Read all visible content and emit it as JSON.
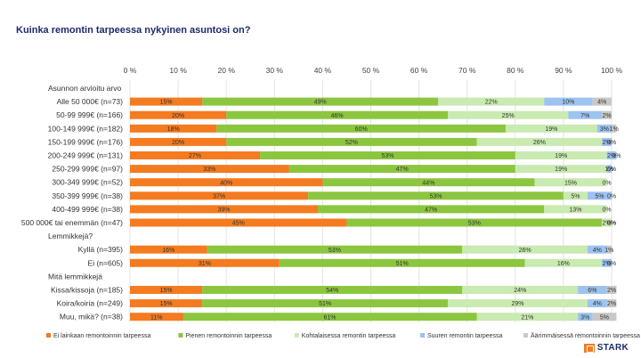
{
  "title": "Kuinka remontin tarpeessa nykyinen asuntosi on?",
  "brand": {
    "name": "STARK"
  },
  "chart_data": {
    "type": "bar",
    "orientation": "horizontal",
    "stacked": true,
    "xlim": [
      0,
      100
    ],
    "xticks": [
      "0 %",
      "10 %",
      "20 %",
      "30 %",
      "40 %",
      "50 %",
      "60 %",
      "70 %",
      "80 %",
      "90 %",
      "100 %"
    ],
    "legend_position": "bottom",
    "colors": [
      "#f47b20",
      "#8cc63f",
      "#c9eab0",
      "#9dc3f0",
      "#c8c8c8"
    ],
    "series_names": [
      "Ei lainkaan remontoinnin tarpeessa",
      "Pienen remontoinnin tarpeessa",
      "Kohtalaisessa remontin tarpeessa",
      "Suuren remontin tarpeessa",
      "Äärimmäisessä remontoinnin tarpeessa"
    ],
    "rows": [
      {
        "kind": "header",
        "label": "Asunnon arvioitu arvo"
      },
      {
        "kind": "bar",
        "label": "Alle 50 000€ (n=73)",
        "values": [
          15,
          49,
          22,
          10,
          4
        ],
        "value_labels": [
          "15%",
          "49%",
          "22%",
          "10%",
          "4%"
        ]
      },
      {
        "kind": "bar",
        "label": "50-99 999€ (n=166)",
        "values": [
          20,
          46,
          25,
          7,
          2
        ],
        "value_labels": [
          "20%",
          "46%",
          "25%",
          "7%",
          "2%"
        ]
      },
      {
        "kind": "bar",
        "label": "100-149 999€ (n=182)",
        "values": [
          18,
          60,
          19,
          3,
          1
        ],
        "value_labels": [
          "18%",
          "60%",
          "19%",
          "3%",
          "1%"
        ]
      },
      {
        "kind": "bar",
        "label": "150-199 999€ (n=176)",
        "values": [
          20,
          52,
          26,
          2,
          0
        ],
        "value_labels": [
          "20%",
          "52%",
          "26%",
          "2%",
          "0%"
        ]
      },
      {
        "kind": "bar",
        "label": "200-249 999€ (n=131)",
        "values": [
          27,
          53,
          19,
          2,
          0
        ],
        "value_labels": [
          "27%",
          "53%",
          "19%",
          "2%",
          "0%"
        ]
      },
      {
        "kind": "bar",
        "label": "250-299 999€ (n=97)",
        "values": [
          33,
          47,
          19,
          1,
          0
        ],
        "value_labels": [
          "33%",
          "47%",
          "19%",
          "1%",
          "0%"
        ]
      },
      {
        "kind": "bar",
        "label": "300-349 999€ (n=52)",
        "values": [
          40,
          44,
          15,
          0,
          0
        ],
        "value_labels": [
          "40%",
          "44%",
          "15%",
          "",
          "0%"
        ]
      },
      {
        "kind": "bar",
        "label": "350-399 999€ (n=38)",
        "values": [
          37,
          53,
          5,
          5,
          0
        ],
        "value_labels": [
          "37%",
          "53%",
          "5%",
          "5%",
          "0%"
        ]
      },
      {
        "kind": "bar",
        "label": "400-499 999€ (n=38)",
        "values": [
          39,
          47,
          13,
          0,
          0
        ],
        "value_labels": [
          "39%",
          "47%",
          "13%",
          "",
          "0%"
        ]
      },
      {
        "kind": "bar",
        "label": "500 000€ tai enemmän (n=47)",
        "values": [
          45,
          53,
          2,
          0,
          0
        ],
        "value_labels": [
          "45%",
          "53%",
          "2%",
          "0%",
          "0%"
        ]
      },
      {
        "kind": "header",
        "label": "Lemmikkejä?"
      },
      {
        "kind": "bar",
        "label": "Kyllä (n=395)",
        "values": [
          16,
          53,
          26,
          4,
          1
        ],
        "value_labels": [
          "16%",
          "53%",
          "26%",
          "4%",
          "1%"
        ]
      },
      {
        "kind": "bar",
        "label": "Ei (n=605)",
        "values": [
          31,
          51,
          16,
          2,
          0
        ],
        "value_labels": [
          "31%",
          "51%",
          "16%",
          "2%",
          "0%"
        ]
      },
      {
        "kind": "header",
        "label": "Mitä lemmikkejä"
      },
      {
        "kind": "bar",
        "label": "Kissa/kissoja (n=185)",
        "values": [
          15,
          54,
          24,
          6,
          2
        ],
        "value_labels": [
          "15%",
          "54%",
          "24%",
          "6%",
          "2%"
        ]
      },
      {
        "kind": "bar",
        "label": "Koira/koiria (n=249)",
        "values": [
          15,
          51,
          29,
          4,
          2
        ],
        "value_labels": [
          "15%",
          "51%",
          "29%",
          "4%",
          "2%"
        ]
      },
      {
        "kind": "bar",
        "label": "Muu, mikä? (n=38)",
        "values": [
          11,
          61,
          21,
          3,
          5
        ],
        "value_labels": [
          "11%",
          "61%",
          "21%",
          "3%",
          "5%"
        ]
      }
    ]
  }
}
